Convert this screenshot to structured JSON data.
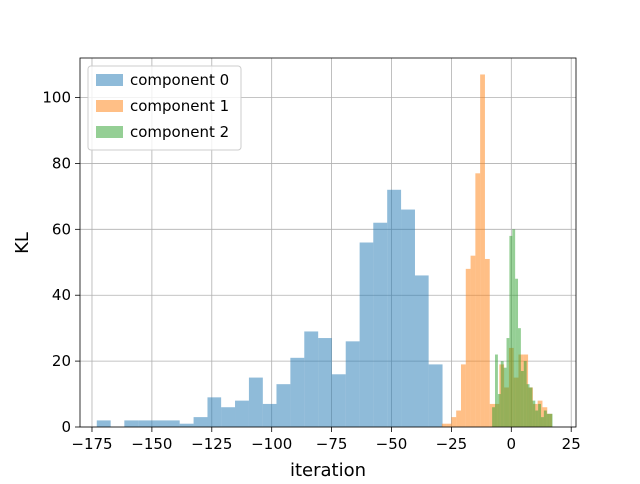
{
  "chart_data": {
    "type": "histogram",
    "xlabel": "iteration",
    "ylabel": "KL",
    "xlim": [
      -180,
      27
    ],
    "ylim": [
      0,
      112
    ],
    "xticks": [
      -175,
      -150,
      -125,
      -100,
      -75,
      -50,
      -25,
      0,
      25
    ],
    "yticks": [
      0,
      20,
      40,
      60,
      80,
      100
    ],
    "grid": true,
    "legend_position": "top-left",
    "series": [
      {
        "name": "component 0",
        "color": "#1f77b4",
        "alpha": 0.5,
        "bins": [
          {
            "x0": -173,
            "x1": -167.2,
            "count": 2
          },
          {
            "x0": -167.2,
            "x1": -161.5,
            "count": 0
          },
          {
            "x0": -161.5,
            "x1": -155.7,
            "count": 2
          },
          {
            "x0": -155.7,
            "x1": -149.9,
            "count": 2
          },
          {
            "x0": -149.9,
            "x1": -144.1,
            "count": 2
          },
          {
            "x0": -144.1,
            "x1": -138.4,
            "count": 2
          },
          {
            "x0": -138.4,
            "x1": -132.6,
            "count": 1
          },
          {
            "x0": -132.6,
            "x1": -126.8,
            "count": 3
          },
          {
            "x0": -126.8,
            "x1": -121.1,
            "count": 9
          },
          {
            "x0": -121.1,
            "x1": -115.3,
            "count": 6
          },
          {
            "x0": -115.3,
            "x1": -109.5,
            "count": 8
          },
          {
            "x0": -109.5,
            "x1": -103.7,
            "count": 15
          },
          {
            "x0": -103.7,
            "x1": -98.0,
            "count": 7
          },
          {
            "x0": -98.0,
            "x1": -92.2,
            "count": 13
          },
          {
            "x0": -92.2,
            "x1": -86.4,
            "count": 21
          },
          {
            "x0": -86.4,
            "x1": -80.6,
            "count": 29
          },
          {
            "x0": -80.6,
            "x1": -74.9,
            "count": 27
          },
          {
            "x0": -74.9,
            "x1": -69.1,
            "count": 16
          },
          {
            "x0": -69.1,
            "x1": -63.3,
            "count": 26
          },
          {
            "x0": -63.3,
            "x1": -57.6,
            "count": 56
          },
          {
            "x0": -57.6,
            "x1": -51.8,
            "count": 62
          },
          {
            "x0": -51.8,
            "x1": -46.0,
            "count": 72
          },
          {
            "x0": -46.0,
            "x1": -40.2,
            "count": 66
          },
          {
            "x0": -40.2,
            "x1": -34.5,
            "count": 46
          },
          {
            "x0": -34.5,
            "x1": -28.7,
            "count": 19
          }
        ]
      },
      {
        "name": "component 1",
        "color": "#ff7f0e",
        "alpha": 0.5,
        "bins": [
          {
            "x0": -29,
            "x1": -27,
            "count": 1
          },
          {
            "x0": -27,
            "x1": -25,
            "count": 1
          },
          {
            "x0": -25,
            "x1": -23,
            "count": 3
          },
          {
            "x0": -23,
            "x1": -21,
            "count": 5
          },
          {
            "x0": -21,
            "x1": -19,
            "count": 19
          },
          {
            "x0": -19,
            "x1": -17,
            "count": 48
          },
          {
            "x0": -17,
            "x1": -15,
            "count": 52
          },
          {
            "x0": -15,
            "x1": -13,
            "count": 77
          },
          {
            "x0": -13,
            "x1": -11,
            "count": 107
          },
          {
            "x0": -11,
            "x1": -9,
            "count": 51
          },
          {
            "x0": -9,
            "x1": -7,
            "count": 7
          },
          {
            "x0": -7,
            "x1": -5,
            "count": 7
          },
          {
            "x0": -5,
            "x1": -3,
            "count": 19
          },
          {
            "x0": -3,
            "x1": -1,
            "count": 12
          },
          {
            "x0": -1,
            "x1": 1,
            "count": 24
          },
          {
            "x0": 1,
            "x1": 3,
            "count": 15
          },
          {
            "x0": 3,
            "x1": 5,
            "count": 22
          },
          {
            "x0": 5,
            "x1": 7,
            "count": 22
          },
          {
            "x0": 7,
            "x1": 9,
            "count": 12
          },
          {
            "x0": 9,
            "x1": 11,
            "count": 7
          },
          {
            "x0": 11,
            "x1": 13,
            "count": 8
          },
          {
            "x0": 13,
            "x1": 15,
            "count": 6
          },
          {
            "x0": 15,
            "x1": 17,
            "count": 4
          }
        ]
      },
      {
        "name": "component 2",
        "color": "#2ca02c",
        "alpha": 0.5,
        "bins": [
          {
            "x0": -8,
            "x1": -6.8,
            "count": 6
          },
          {
            "x0": -6.8,
            "x1": -5.6,
            "count": 22
          },
          {
            "x0": -5.6,
            "x1": -4.4,
            "count": 10
          },
          {
            "x0": -4.4,
            "x1": -3.2,
            "count": 20
          },
          {
            "x0": -3.2,
            "x1": -2.0,
            "count": 18
          },
          {
            "x0": -2.0,
            "x1": -0.8,
            "count": 27
          },
          {
            "x0": -0.8,
            "x1": 0.4,
            "count": 58
          },
          {
            "x0": 0.4,
            "x1": 1.6,
            "count": 60
          },
          {
            "x0": 1.6,
            "x1": 2.8,
            "count": 45
          },
          {
            "x0": 2.8,
            "x1": 4.0,
            "count": 30
          },
          {
            "x0": 4.0,
            "x1": 5.2,
            "count": 17
          },
          {
            "x0": 5.2,
            "x1": 6.4,
            "count": 20
          },
          {
            "x0": 6.4,
            "x1": 7.6,
            "count": 13
          },
          {
            "x0": 7.6,
            "x1": 8.8,
            "count": 12
          },
          {
            "x0": 8.8,
            "x1": 10.0,
            "count": 8
          },
          {
            "x0": 10.0,
            "x1": 11.2,
            "count": 5
          },
          {
            "x0": 11.2,
            "x1": 12.4,
            "count": 7
          },
          {
            "x0": 12.4,
            "x1": 13.6,
            "count": 3
          },
          {
            "x0": 13.6,
            "x1": 14.8,
            "count": 5
          },
          {
            "x0": 14.8,
            "x1": 16.0,
            "count": 4
          },
          {
            "x0": 16.0,
            "x1": 17.2,
            "count": 4
          }
        ]
      }
    ]
  }
}
